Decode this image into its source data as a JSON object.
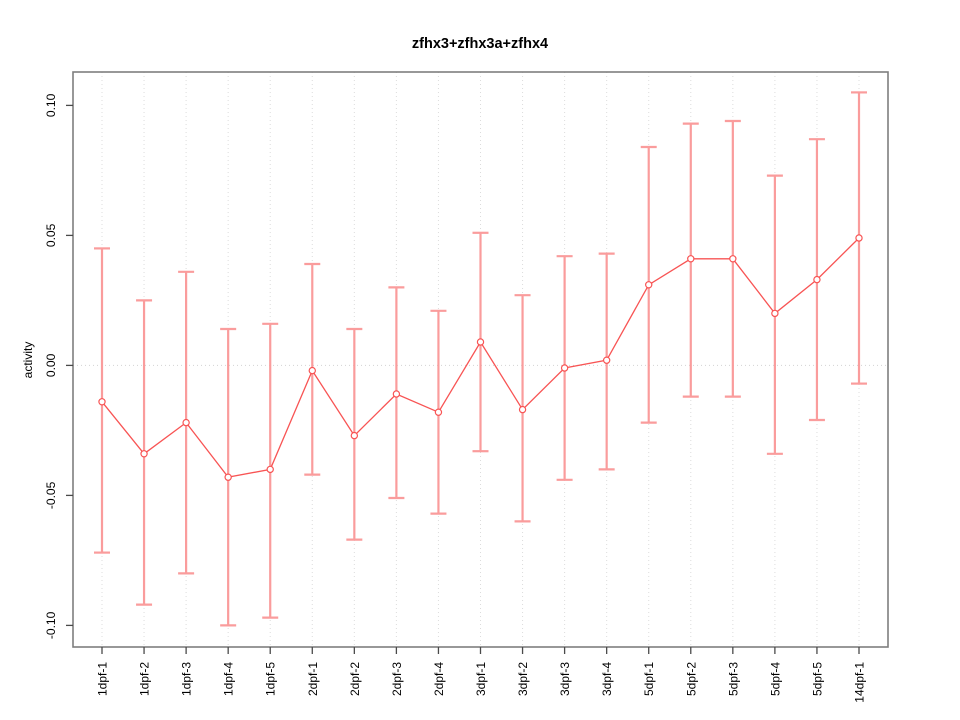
{
  "page": {
    "title": "zfhx3+zfhx3a+zfhx4"
  },
  "chart_data": {
    "type": "line",
    "title": "zfhx3+zfhx3a+zfhx4",
    "xlabel": "",
    "ylabel": "activity",
    "legend": "none",
    "marker": "open-circle",
    "error_bars": true,
    "categories": [
      "1dpf-1",
      "1dpf-2",
      "1dpf-3",
      "1dpf-4",
      "1dpf-5",
      "2dpf-1",
      "2dpf-2",
      "2dpf-3",
      "2dpf-4",
      "3dpf-1",
      "3dpf-2",
      "3dpf-3",
      "3dpf-4",
      "5dpf-1",
      "5dpf-2",
      "5dpf-3",
      "5dpf-4",
      "5dpf-5",
      "14dpf-1"
    ],
    "series": [
      {
        "name": "activity",
        "values": [
          -0.014,
          -0.034,
          -0.022,
          -0.043,
          -0.04,
          -0.002,
          -0.027,
          -0.011,
          -0.018,
          0.009,
          -0.017,
          -0.001,
          0.002,
          0.031,
          0.041,
          0.041,
          0.02,
          0.033,
          0.049
        ],
        "upper": [
          0.045,
          0.025,
          0.036,
          0.014,
          0.016,
          0.039,
          0.014,
          0.03,
          0.021,
          0.051,
          0.027,
          0.042,
          0.043,
          0.084,
          0.093,
          0.094,
          0.073,
          0.087,
          0.105
        ],
        "lower": [
          -0.072,
          -0.092,
          -0.08,
          -0.1,
          -0.097,
          -0.042,
          -0.067,
          -0.051,
          -0.057,
          -0.033,
          -0.06,
          -0.044,
          -0.04,
          -0.022,
          -0.012,
          -0.012,
          -0.034,
          -0.021,
          -0.007
        ]
      }
    ],
    "y_ticks": {
      "values": [
        -0.1,
        -0.05,
        0.0,
        0.05,
        0.1
      ],
      "labels": [
        "-0.10",
        "-0.05",
        "0.00",
        "0.05",
        "0.10"
      ]
    },
    "ylim": [
      -0.109,
      0.113
    ],
    "grid": {
      "vertical_dotted_per_category": true,
      "horizontal_zero_line_dotted": true
    },
    "colors": {
      "series": "#f85454",
      "error_bar": "#fa9c9c",
      "marker_fill": "#ffffff",
      "grid": "#dcdcdc",
      "zero_line": "#d2d2d2",
      "box": "#7e7e7e",
      "tick": "#4a4a4a",
      "text": "#000000",
      "background": "#ffffff"
    }
  }
}
